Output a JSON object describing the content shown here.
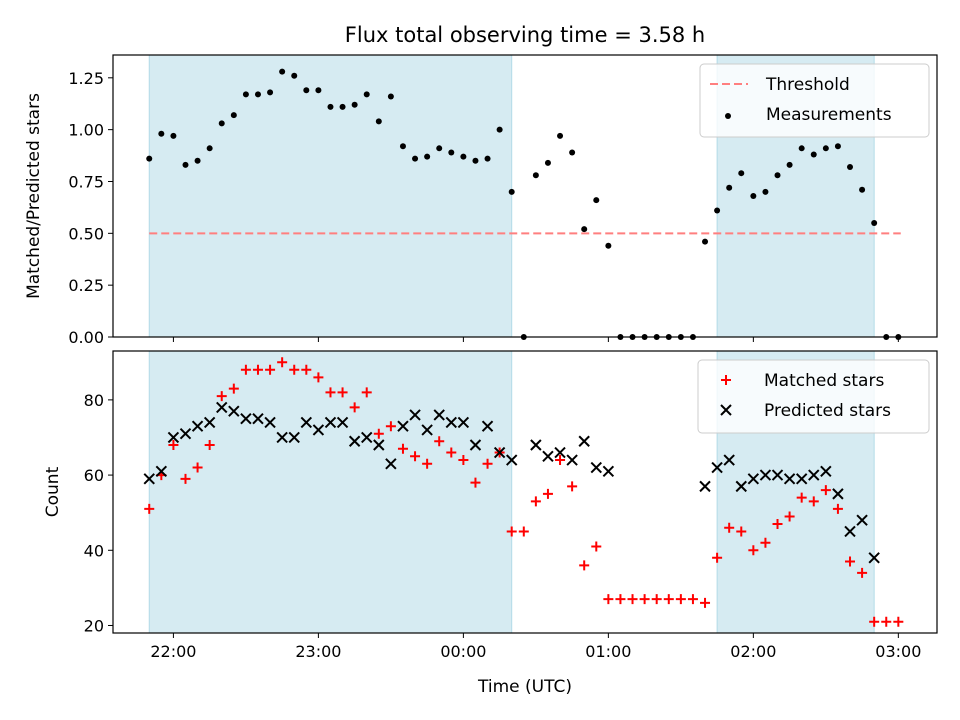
{
  "figure": {
    "title": "Flux total observing time = 3.58 h",
    "xlabel": "Time (UTC)"
  },
  "colors": {
    "shade": "#add8e6",
    "threshold": "#ff7f7f",
    "measurement": "#000000",
    "matched": "#ff0000",
    "predicted": "#000000"
  },
  "chart_data": [
    {
      "type": "scatter",
      "name_in_figure": "top",
      "ylabel": "Matched/Predicted stars",
      "xlim": [
        "21:35",
        "03:16"
      ],
      "ylim": [
        0,
        1.36
      ],
      "x_ticks": [
        "22:00",
        "23:00",
        "00:00",
        "01:00",
        "02:00",
        "03:00"
      ],
      "y_ticks": [
        "0.00",
        "0.25",
        "0.50",
        "0.75",
        "1.00",
        "1.25"
      ],
      "y_tick_values": [
        0,
        0.25,
        0.5,
        0.75,
        1.0,
        1.25
      ],
      "legend": {
        "placement": "top-right",
        "entries": [
          "Threshold",
          "Measurements"
        ]
      },
      "shaded_regions": [
        [
          "21:50",
          "00:20"
        ],
        [
          "01:45",
          "02:50"
        ]
      ],
      "threshold": {
        "name": "Threshold",
        "y": 0.5,
        "x": [
          "21:50",
          "03:01"
        ]
      },
      "series": [
        {
          "name": "Measurements",
          "marker": "dot",
          "points": [
            [
              "21:50",
              0.86
            ],
            [
              "21:55",
              0.98
            ],
            [
              "22:00",
              0.97
            ],
            [
              "22:05",
              0.83
            ],
            [
              "22:10",
              0.85
            ],
            [
              "22:15",
              0.91
            ],
            [
              "22:20",
              1.03
            ],
            [
              "22:25",
              1.07
            ],
            [
              "22:30",
              1.17
            ],
            [
              "22:35",
              1.17
            ],
            [
              "22:40",
              1.18
            ],
            [
              "22:45",
              1.28
            ],
            [
              "22:50",
              1.26
            ],
            [
              "22:55",
              1.19
            ],
            [
              "23:00",
              1.19
            ],
            [
              "23:05",
              1.11
            ],
            [
              "23:10",
              1.11
            ],
            [
              "23:15",
              1.12
            ],
            [
              "23:20",
              1.17
            ],
            [
              "23:25",
              1.04
            ],
            [
              "23:30",
              1.16
            ],
            [
              "23:35",
              0.92
            ],
            [
              "23:40",
              0.86
            ],
            [
              "23:45",
              0.87
            ],
            [
              "23:50",
              0.91
            ],
            [
              "23:55",
              0.89
            ],
            [
              "00:00",
              0.87
            ],
            [
              "00:05",
              0.85
            ],
            [
              "00:10",
              0.86
            ],
            [
              "00:15",
              1.0
            ],
            [
              "00:20",
              0.7
            ],
            [
              "00:25",
              0.0
            ],
            [
              "00:30",
              0.78
            ],
            [
              "00:35",
              0.84
            ],
            [
              "00:40",
              0.97
            ],
            [
              "00:45",
              0.89
            ],
            [
              "00:50",
              0.52
            ],
            [
              "00:55",
              0.66
            ],
            [
              "01:00",
              0.44
            ],
            [
              "01:05",
              0.0
            ],
            [
              "01:10",
              0.0
            ],
            [
              "01:15",
              0.0
            ],
            [
              "01:20",
              0.0
            ],
            [
              "01:25",
              0.0
            ],
            [
              "01:30",
              0.0
            ],
            [
              "01:35",
              0.0
            ],
            [
              "01:40",
              0.46
            ],
            [
              "01:45",
              0.61
            ],
            [
              "01:50",
              0.72
            ],
            [
              "01:55",
              0.79
            ],
            [
              "02:00",
              0.68
            ],
            [
              "02:05",
              0.7
            ],
            [
              "02:10",
              0.78
            ],
            [
              "02:15",
              0.83
            ],
            [
              "02:20",
              0.91
            ],
            [
              "02:25",
              0.88
            ],
            [
              "02:30",
              0.91
            ],
            [
              "02:35",
              0.92
            ],
            [
              "02:40",
              0.82
            ],
            [
              "02:45",
              0.71
            ],
            [
              "02:50",
              0.55
            ],
            [
              "02:55",
              0.0
            ],
            [
              "03:00",
              0.0
            ]
          ]
        }
      ]
    },
    {
      "type": "scatter",
      "name_in_figure": "bottom",
      "ylabel": "Count",
      "xlim": [
        "21:35",
        "03:16"
      ],
      "ylim": [
        18,
        93
      ],
      "x_ticks": [
        "22:00",
        "23:00",
        "00:00",
        "01:00",
        "02:00",
        "03:00"
      ],
      "y_ticks": [
        "20",
        "40",
        "60",
        "80"
      ],
      "y_tick_values": [
        20,
        40,
        60,
        80
      ],
      "legend": {
        "placement": "top-right",
        "entries": [
          "Matched stars",
          "Predicted stars"
        ]
      },
      "shaded_regions": [
        [
          "21:50",
          "00:20"
        ],
        [
          "01:45",
          "02:50"
        ]
      ],
      "series": [
        {
          "name": "Matched stars",
          "marker": "plus",
          "points": [
            [
              "21:50",
              51
            ],
            [
              "21:55",
              60
            ],
            [
              "22:00",
              68
            ],
            [
              "22:05",
              59
            ],
            [
              "22:10",
              62
            ],
            [
              "22:15",
              68
            ],
            [
              "22:20",
              81
            ],
            [
              "22:25",
              83
            ],
            [
              "22:30",
              88
            ],
            [
              "22:35",
              88
            ],
            [
              "22:40",
              88
            ],
            [
              "22:45",
              90
            ],
            [
              "22:50",
              88
            ],
            [
              "22:55",
              88
            ],
            [
              "23:00",
              86
            ],
            [
              "23:05",
              82
            ],
            [
              "23:10",
              82
            ],
            [
              "23:15",
              78
            ],
            [
              "23:20",
              82
            ],
            [
              "23:25",
              71
            ],
            [
              "23:30",
              73
            ],
            [
              "23:35",
              67
            ],
            [
              "23:40",
              65
            ],
            [
              "23:45",
              63
            ],
            [
              "23:50",
              69
            ],
            [
              "23:55",
              66
            ],
            [
              "00:00",
              64
            ],
            [
              "00:05",
              58
            ],
            [
              "00:10",
              63
            ],
            [
              "00:15",
              66
            ],
            [
              "00:20",
              45
            ],
            [
              "00:25",
              45
            ],
            [
              "00:30",
              53
            ],
            [
              "00:35",
              55
            ],
            [
              "00:40",
              64
            ],
            [
              "00:45",
              57
            ],
            [
              "00:50",
              36
            ],
            [
              "00:55",
              41
            ],
            [
              "01:00",
              27
            ],
            [
              "01:05",
              27
            ],
            [
              "01:10",
              27
            ],
            [
              "01:15",
              27
            ],
            [
              "01:20",
              27
            ],
            [
              "01:25",
              27
            ],
            [
              "01:30",
              27
            ],
            [
              "01:35",
              27
            ],
            [
              "01:40",
              26
            ],
            [
              "01:45",
              38
            ],
            [
              "01:50",
              46
            ],
            [
              "01:55",
              45
            ],
            [
              "02:00",
              40
            ],
            [
              "02:05",
              42
            ],
            [
              "02:10",
              47
            ],
            [
              "02:15",
              49
            ],
            [
              "02:20",
              54
            ],
            [
              "02:25",
              53
            ],
            [
              "02:30",
              56
            ],
            [
              "02:35",
              51
            ],
            [
              "02:40",
              37
            ],
            [
              "02:45",
              34
            ],
            [
              "02:50",
              21
            ],
            [
              "02:55",
              21
            ],
            [
              "03:00",
              21
            ]
          ]
        },
        {
          "name": "Predicted stars",
          "marker": "x",
          "points": [
            [
              "21:50",
              59
            ],
            [
              "21:55",
              61
            ],
            [
              "22:00",
              70
            ],
            [
              "22:05",
              71
            ],
            [
              "22:10",
              73
            ],
            [
              "22:15",
              74
            ],
            [
              "22:20",
              78
            ],
            [
              "22:25",
              77
            ],
            [
              "22:30",
              75
            ],
            [
              "22:35",
              75
            ],
            [
              "22:40",
              74
            ],
            [
              "22:45",
              70
            ],
            [
              "22:50",
              70
            ],
            [
              "22:55",
              74
            ],
            [
              "23:00",
              72
            ],
            [
              "23:05",
              74
            ],
            [
              "23:10",
              74
            ],
            [
              "23:15",
              69
            ],
            [
              "23:20",
              70
            ],
            [
              "23:25",
              68
            ],
            [
              "23:30",
              63
            ],
            [
              "23:35",
              73
            ],
            [
              "23:40",
              76
            ],
            [
              "23:45",
              72
            ],
            [
              "23:50",
              76
            ],
            [
              "23:55",
              74
            ],
            [
              "00:00",
              74
            ],
            [
              "00:05",
              68
            ],
            [
              "00:10",
              73
            ],
            [
              "00:15",
              66
            ],
            [
              "00:20",
              64
            ],
            [
              "00:30",
              68
            ],
            [
              "00:35",
              65
            ],
            [
              "00:40",
              66
            ],
            [
              "00:45",
              64
            ],
            [
              "00:50",
              69
            ],
            [
              "00:55",
              62
            ],
            [
              "01:00",
              61
            ],
            [
              "01:40",
              57
            ],
            [
              "01:45",
              62
            ],
            [
              "01:50",
              64
            ],
            [
              "01:55",
              57
            ],
            [
              "02:00",
              59
            ],
            [
              "02:05",
              60
            ],
            [
              "02:10",
              60
            ],
            [
              "02:15",
              59
            ],
            [
              "02:20",
              59
            ],
            [
              "02:25",
              60
            ],
            [
              "02:30",
              61
            ],
            [
              "02:35",
              55
            ],
            [
              "02:40",
              45
            ],
            [
              "02:45",
              48
            ],
            [
              "02:50",
              38
            ]
          ]
        }
      ]
    }
  ]
}
